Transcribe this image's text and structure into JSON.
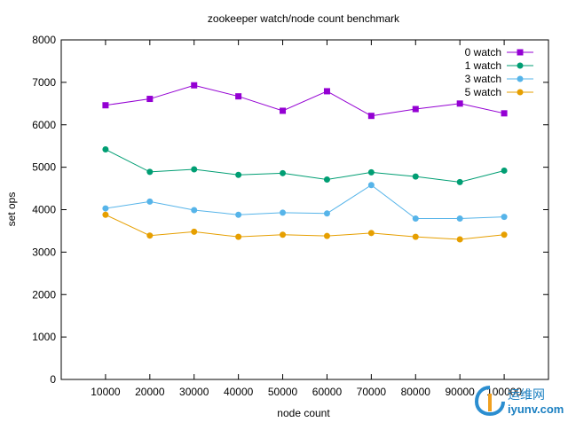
{
  "chart_data": {
    "type": "line",
    "title": "zookeeper watch/node count benchmark",
    "xlabel": "node count",
    "ylabel": "set ops",
    "x": [
      10000,
      20000,
      30000,
      40000,
      50000,
      60000,
      70000,
      80000,
      90000,
      100000
    ],
    "xlim": [
      0,
      110000
    ],
    "ylim": [
      0,
      8000
    ],
    "yticks": [
      0,
      1000,
      2000,
      3000,
      4000,
      5000,
      6000,
      7000,
      8000
    ],
    "xtick_labels": [
      "10000",
      "20000",
      "30000",
      "40000",
      "50000",
      "60000",
      "70000",
      "80000",
      "90000",
      "100000"
    ],
    "ytick_labels": [
      "0",
      "1000",
      "2000",
      "3000",
      "4000",
      "5000",
      "6000",
      "7000",
      "8000"
    ],
    "grid": false,
    "legend_position": "top-right",
    "series": [
      {
        "name": "0 watch",
        "color": "#9400d3",
        "marker": "square",
        "values": [
          6460,
          6610,
          6930,
          6670,
          6330,
          6790,
          6210,
          6370,
          6500,
          6270
        ]
      },
      {
        "name": "1 watch",
        "color": "#009e73",
        "marker": "circle",
        "values": [
          5420,
          4890,
          4950,
          4820,
          4860,
          4710,
          4880,
          4780,
          4650,
          4920
        ]
      },
      {
        "name": "3 watch",
        "color": "#56b4e9",
        "marker": "circle",
        "values": [
          4030,
          4190,
          3990,
          3880,
          3930,
          3910,
          4580,
          3790,
          3790,
          3830
        ]
      },
      {
        "name": "5 watch",
        "color": "#e69f00",
        "marker": "circle",
        "values": [
          3880,
          3390,
          3480,
          3360,
          3410,
          3380,
          3450,
          3360,
          3300,
          3410
        ]
      }
    ]
  },
  "watermark": {
    "text": "iyunv.com",
    "cn_text": "运维网",
    "color": "#1a7fc1"
  }
}
